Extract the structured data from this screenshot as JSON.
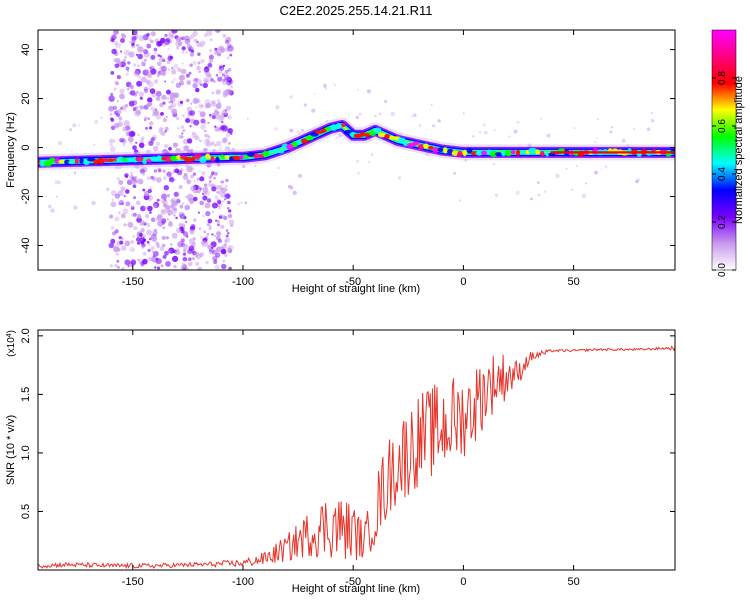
{
  "figure_title": "C2E2.2025.255.14.21.R11",
  "chart_data": [
    {
      "type": "heatmap",
      "title": "C2E2.2025.255.14.21.R11",
      "xlabel": "Height of straight line (km)",
      "ylabel": "Frequency (Hz)",
      "xlim": [
        -193,
        96
      ],
      "ylim": [
        -50,
        48
      ],
      "xticks": [
        -150,
        -100,
        -50,
        0,
        50
      ],
      "xtick_labels": [
        "-150",
        "-100",
        "-50",
        "0",
        "50"
      ],
      "yticks": [
        -40,
        -20,
        0,
        20,
        40
      ],
      "ytick_labels": [
        "-40",
        "-20",
        "0",
        "20",
        "40"
      ],
      "ridge": {
        "x": [
          -193,
          -150,
          -105,
          -100,
          -90,
          -80,
          -70,
          -60,
          -55,
          -50,
          -45,
          -40,
          -35,
          -30,
          -20,
          -10,
          0,
          10,
          20,
          40,
          60,
          80,
          96
        ],
        "y": [
          -6,
          -5,
          -4,
          -4,
          -3,
          0,
          4,
          8,
          9,
          5,
          5,
          7,
          5,
          3,
          1,
          -1,
          -2,
          -2,
          -2,
          -2,
          -2,
          -2,
          -2
        ]
      },
      "scatter_band_x": [
        -160,
        -105
      ],
      "colorbar": {
        "label": "Normalized spectral amplitude",
        "range": [
          0.0,
          1.0
        ],
        "ticks": [
          0.0,
          0.2,
          0.4,
          0.6,
          0.8
        ],
        "tick_labels": [
          "0.0",
          "0.2",
          "0.4",
          "0.6",
          "0.8"
        ],
        "colors": [
          "#ffffff",
          "#c999ee",
          "#7a00ff",
          "#0000ff",
          "#00ffff",
          "#00ff00",
          "#ffff00",
          "#ff0000",
          "#ff0080",
          "#ff00ff"
        ]
      }
    },
    {
      "type": "line",
      "xlabel": "Height of straight line (km)",
      "ylabel": "SNR (10 * v/v)",
      "scale_label": "(x10",
      "scale_exponent": "4",
      "scale_close": ")",
      "xlim": [
        -193,
        96
      ],
      "ylim": [
        0,
        2.05
      ],
      "xticks": [
        -150,
        -100,
        -50,
        0,
        50
      ],
      "xtick_labels": [
        "-150",
        "-100",
        "-50",
        "0",
        "50"
      ],
      "yticks": [
        0.5,
        1.0,
        1.5,
        2.0
      ],
      "ytick_labels": [
        "0.5",
        "1.0",
        "1.5",
        "2.0"
      ],
      "color": "#e8332a",
      "series": [
        {
          "name": "SNR",
          "x": [
            -193,
            -180,
            -160,
            -140,
            -120,
            -100,
            -90,
            -80,
            -70,
            -60,
            -50,
            -45,
            -40,
            -35,
            -30,
            -25,
            -20,
            -15,
            -10,
            -5,
            0,
            5,
            10,
            15,
            20,
            25,
            30,
            40,
            50,
            60,
            70,
            80,
            90,
            96
          ],
          "base": [
            0.03,
            0.04,
            0.03,
            0.03,
            0.04,
            0.05,
            0.08,
            0.15,
            0.25,
            0.3,
            0.25,
            0.2,
            0.4,
            0.65,
            0.8,
            0.9,
            1.0,
            1.05,
            1.1,
            1.15,
            1.2,
            1.3,
            1.45,
            1.55,
            1.6,
            1.65,
            1.8,
            1.87,
            1.87,
            1.88,
            1.88,
            1.88,
            1.89,
            1.89
          ],
          "amp": [
            0.02,
            0.02,
            0.02,
            0.02,
            0.02,
            0.03,
            0.06,
            0.12,
            0.2,
            0.3,
            0.25,
            0.15,
            0.3,
            0.35,
            0.35,
            0.4,
            0.4,
            0.4,
            0.4,
            0.4,
            0.35,
            0.35,
            0.3,
            0.25,
            0.2,
            0.1,
            0.05,
            0.01,
            0.01,
            0.01,
            0.01,
            0.01,
            0.01,
            0.02
          ]
        }
      ]
    }
  ]
}
